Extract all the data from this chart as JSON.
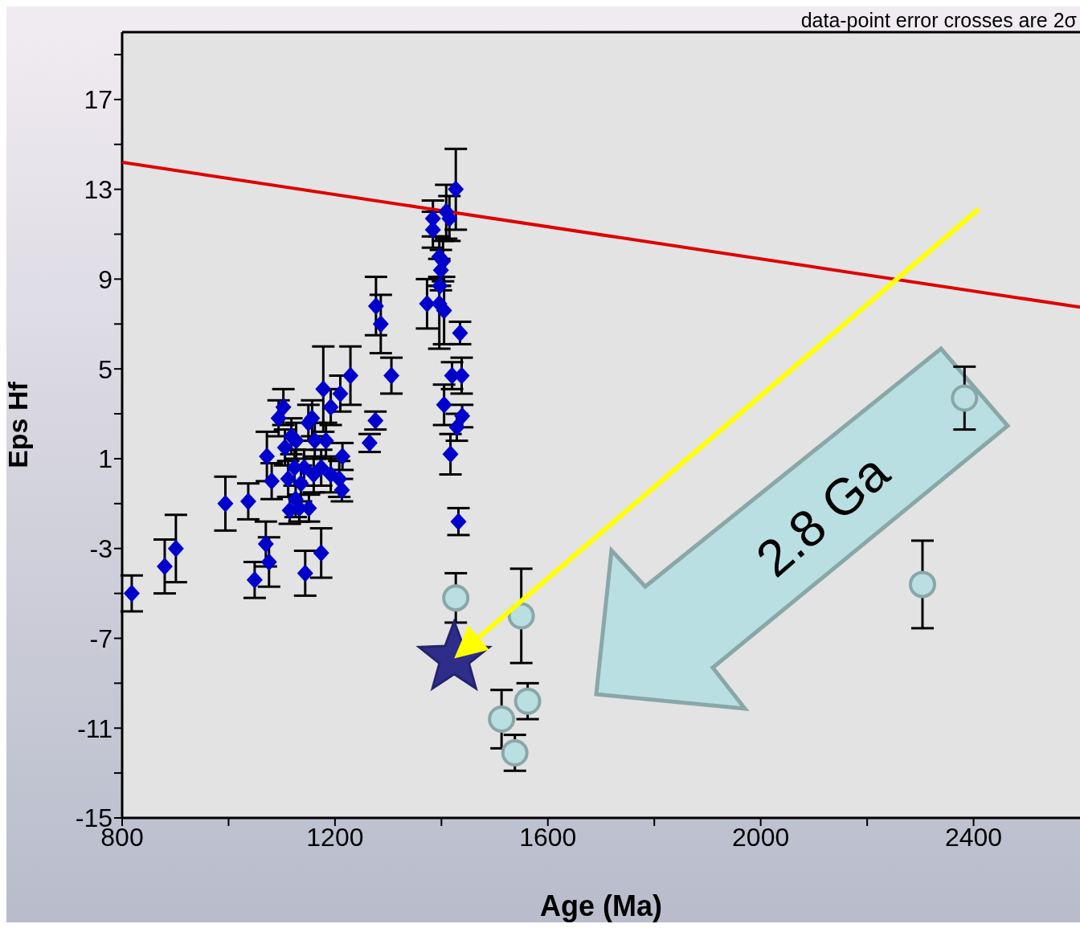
{
  "chart_data": {
    "type": "scatter",
    "xlabel": "Age (Ma)",
    "ylabel": "Eps Hf",
    "xlim": [
      800,
      2600
    ],
    "xticks": [
      800,
      {
        "value": 1000,
        "label": null
      },
      1200,
      {
        "value": 1400,
        "label": null
      },
      1600,
      {
        "value": 1800,
        "label": null
      },
      2000,
      {
        "value": 2200,
        "label": null
      },
      2400
    ],
    "ylim": [
      -15,
      20
    ],
    "yticks": [
      -15,
      {
        "value": -13,
        "label": null
      },
      -11,
      {
        "value": -9,
        "label": null
      },
      -7,
      {
        "value": -5,
        "label": null
      },
      -3,
      {
        "value": -1,
        "label": null
      },
      1,
      {
        "value": 3,
        "label": null
      },
      5,
      {
        "value": 7,
        "label": null
      },
      9,
      {
        "value": 11,
        "label": null
      },
      13,
      {
        "value": 15,
        "label": null
      },
      17,
      {
        "value": 19,
        "label": null
      }
    ],
    "annotations": [
      "data-point error crosses are 2σ",
      "2.8 Ga"
    ],
    "series": [
      {
        "type": "line",
        "color": "#e00000",
        "marker": "none",
        "x": [
          800,
          2600
        ],
        "values": [
          14.2,
          7.75
        ]
      },
      {
        "color": "#0000cc",
        "marker": "diamond",
        "x": [
          818,
          880,
          901,
          994,
          1037,
          1049,
          1070,
          1076,
          1072,
          1081,
          1094,
          1103,
          1144,
          1174,
          1106,
          1118,
          1127,
          1112,
          1115,
          1126,
          1133,
          1142,
          1124,
          1150,
          1157,
          1162,
          1151,
          1136,
          1160,
          1178,
          1183,
          1174,
          1192,
          1192,
          1210,
          1208,
          1214,
          1213,
          1229,
          1265,
          1276,
          1277,
          1286,
          1306,
          1373,
          1384,
          1384,
          1396,
          1399,
          1397,
          1403,
          1396,
          1405,
          1409,
          1415,
          1427,
          1435,
          1420,
          1438,
          1405,
          1439,
          1429,
          1417,
          1432
        ],
        "values": [
          -5.0,
          -3.8,
          -3.0,
          -1.0,
          -0.9,
          -4.4,
          -2.8,
          -3.6,
          1.1,
          0.0,
          2.8,
          3.3,
          -4.1,
          -3.2,
          1.5,
          2.0,
          1.8,
          0.1,
          -1.3,
          -0.8,
          -1.2,
          0.6,
          0.6,
          2.6,
          2.8,
          1.8,
          -1.2,
          -0.1,
          0.3,
          4.1,
          1.8,
          0.6,
          3.3,
          0.3,
          3.9,
          0.1,
          1.1,
          -0.4,
          4.7,
          1.7,
          2.7,
          7.8,
          7.0,
          4.7,
          7.9,
          11.2,
          11.7,
          10.0,
          9.4,
          8.7,
          9.8,
          7.9,
          7.6,
          12.0,
          11.7,
          13.0,
          6.6,
          4.7,
          4.7,
          3.4,
          2.9,
          2.4,
          1.2,
          -1.8
        ],
        "errors": [
          0.8,
          1.2,
          1.5,
          1.2,
          0.8,
          0.8,
          1.0,
          1.1,
          1.1,
          0.8,
          0.8,
          0.8,
          1.0,
          1.1,
          0.8,
          0.8,
          0.8,
          0.8,
          0.6,
          0.8,
          0.6,
          0.8,
          0.8,
          0.8,
          0.8,
          0.8,
          0.6,
          0.8,
          0.8,
          1.9,
          0.8,
          0.8,
          0.8,
          0.8,
          0.8,
          0.8,
          0.6,
          0.5,
          1.3,
          0.4,
          0.4,
          1.3,
          1.3,
          0.8,
          1.1,
          0.8,
          0.8,
          0.9,
          0.9,
          null,
          0.9,
          2.0,
          1.5,
          1.2,
          1.0,
          1.8,
          0.5,
          0.6,
          0.8,
          0.9,
          0.5,
          0.6,
          0.9,
          0.6
        ]
      },
      {
        "color": "#b9dfe2",
        "marker": "circle",
        "x": [
          1427,
          1550,
          1513,
          1562,
          1538,
          2304,
          2383
        ],
        "values": [
          -5.2,
          -6.0,
          -10.6,
          -9.8,
          -12.1,
          -4.6,
          3.7
        ],
        "errors": [
          1.1,
          2.1,
          1.3,
          0.8,
          0.8,
          1.95,
          1.4
        ]
      },
      {
        "color": "#2e2e8a",
        "marker": "star",
        "x": [
          1424
        ],
        "values": [
          -7.9
        ]
      }
    ]
  }
}
